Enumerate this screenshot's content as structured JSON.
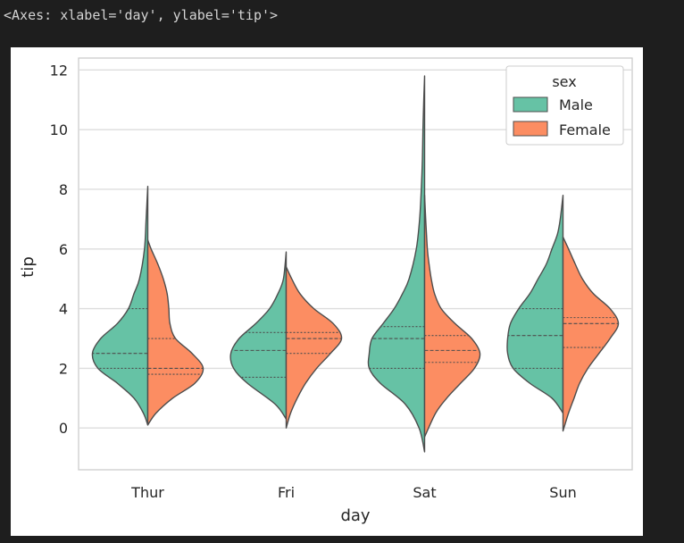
{
  "output_text": "<Axes: xlabel='day', ylabel='tip'>",
  "chart_data": {
    "type": "violin",
    "split": true,
    "inner": "quartile",
    "xlabel": "day",
    "ylabel": "tip",
    "ylim": [
      -1.4,
      12.4
    ],
    "yticks": [
      0,
      2,
      4,
      6,
      8,
      10,
      12
    ],
    "categories": [
      "Thur",
      "Fri",
      "Sat",
      "Sun"
    ],
    "grid": true,
    "legend": {
      "title": "sex",
      "placement": "top-right"
    },
    "series": [
      {
        "name": "Male",
        "color": "#66c2a5",
        "side": "left",
        "violins": [
          {
            "min": 0.1,
            "max": 8.1,
            "quartiles": [
              2.0,
              2.5,
              4.0
            ],
            "density": [
              [
                0.1,
                0.0
              ],
              [
                0.5,
                0.08
              ],
              [
                1.0,
                0.25
              ],
              [
                1.5,
                0.55
              ],
              [
                2.0,
                0.9
              ],
              [
                2.5,
                1.0
              ],
              [
                3.0,
                0.85
              ],
              [
                3.5,
                0.55
              ],
              [
                4.0,
                0.35
              ],
              [
                4.5,
                0.25
              ],
              [
                5.0,
                0.15
              ],
              [
                6.0,
                0.06
              ],
              [
                7.0,
                0.03
              ],
              [
                8.1,
                0.0
              ]
            ]
          },
          {
            "min": 0.3,
            "max": 5.9,
            "quartiles": [
              1.7,
              2.6,
              3.2
            ],
            "density": [
              [
                0.3,
                0.0
              ],
              [
                0.8,
                0.2
              ],
              [
                1.5,
                0.7
              ],
              [
                2.0,
                0.95
              ],
              [
                2.5,
                1.0
              ],
              [
                3.0,
                0.85
              ],
              [
                3.5,
                0.55
              ],
              [
                4.0,
                0.3
              ],
              [
                4.5,
                0.15
              ],
              [
                5.0,
                0.05
              ],
              [
                5.9,
                0.0
              ]
            ]
          },
          {
            "min": -0.8,
            "max": 11.8,
            "quartiles": [
              2.0,
              3.0,
              3.4
            ],
            "density": [
              [
                -0.8,
                0.0
              ],
              [
                0.0,
                0.1
              ],
              [
                0.8,
                0.35
              ],
              [
                1.5,
                0.8
              ],
              [
                2.0,
                1.0
              ],
              [
                2.5,
                1.0
              ],
              [
                3.0,
                0.95
              ],
              [
                3.5,
                0.75
              ],
              [
                4.0,
                0.55
              ],
              [
                4.5,
                0.4
              ],
              [
                5.0,
                0.28
              ],
              [
                6.0,
                0.15
              ],
              [
                7.0,
                0.09
              ],
              [
                8.0,
                0.06
              ],
              [
                9.0,
                0.04
              ],
              [
                10.0,
                0.03
              ],
              [
                11.0,
                0.015
              ],
              [
                11.8,
                0.0
              ]
            ]
          },
          {
            "min": 0.5,
            "max": 7.8,
            "quartiles": [
              2.0,
              3.1,
              4.0
            ],
            "density": [
              [
                0.5,
                0.0
              ],
              [
                1.0,
                0.2
              ],
              [
                1.5,
                0.6
              ],
              [
                2.0,
                0.9
              ],
              [
                2.5,
                1.0
              ],
              [
                3.0,
                1.0
              ],
              [
                3.5,
                0.95
              ],
              [
                4.0,
                0.8
              ],
              [
                4.5,
                0.6
              ],
              [
                5.0,
                0.45
              ],
              [
                5.5,
                0.3
              ],
              [
                6.0,
                0.2
              ],
              [
                6.5,
                0.1
              ],
              [
                7.0,
                0.05
              ],
              [
                7.8,
                0.0
              ]
            ]
          }
        ]
      },
      {
        "name": "Female",
        "color": "#fc8d62",
        "side": "right",
        "violins": [
          {
            "min": 0.1,
            "max": 6.3,
            "quartiles": [
              1.8,
              2.0,
              3.0
            ],
            "density": [
              [
                0.1,
                0.0
              ],
              [
                0.5,
                0.15
              ],
              [
                1.0,
                0.45
              ],
              [
                1.5,
                0.85
              ],
              [
                2.0,
                1.0
              ],
              [
                2.5,
                0.8
              ],
              [
                3.0,
                0.5
              ],
              [
                3.5,
                0.4
              ],
              [
                4.0,
                0.38
              ],
              [
                4.5,
                0.35
              ],
              [
                5.0,
                0.28
              ],
              [
                5.5,
                0.18
              ],
              [
                6.0,
                0.06
              ],
              [
                6.3,
                0.0
              ]
            ]
          },
          {
            "min": 0.0,
            "max": 5.4,
            "quartiles": [
              2.5,
              3.0,
              3.2
            ],
            "density": [
              [
                0.0,
                0.0
              ],
              [
                0.5,
                0.08
              ],
              [
                1.0,
                0.2
              ],
              [
                1.5,
                0.35
              ],
              [
                2.0,
                0.55
              ],
              [
                2.5,
                0.8
              ],
              [
                3.0,
                1.0
              ],
              [
                3.5,
                0.85
              ],
              [
                4.0,
                0.5
              ],
              [
                4.5,
                0.25
              ],
              [
                5.0,
                0.1
              ],
              [
                5.4,
                0.0
              ]
            ]
          },
          {
            "min": -0.3,
            "max": 7.8,
            "quartiles": [
              2.2,
              2.6,
              3.1
            ],
            "density": [
              [
                -0.3,
                0.0
              ],
              [
                0.5,
                0.2
              ],
              [
                1.0,
                0.4
              ],
              [
                1.5,
                0.65
              ],
              [
                2.0,
                0.9
              ],
              [
                2.5,
                1.0
              ],
              [
                3.0,
                0.85
              ],
              [
                3.5,
                0.55
              ],
              [
                4.0,
                0.3
              ],
              [
                4.5,
                0.18
              ],
              [
                5.0,
                0.12
              ],
              [
                5.5,
                0.08
              ],
              [
                6.0,
                0.05
              ],
              [
                7.0,
                0.02
              ],
              [
                7.8,
                0.0
              ]
            ]
          },
          {
            "min": -0.1,
            "max": 6.4,
            "quartiles": [
              2.7,
              3.5,
              3.7
            ],
            "density": [
              [
                -0.1,
                0.0
              ],
              [
                0.5,
                0.1
              ],
              [
                1.0,
                0.2
              ],
              [
                1.5,
                0.3
              ],
              [
                2.0,
                0.45
              ],
              [
                2.5,
                0.65
              ],
              [
                3.0,
                0.85
              ],
              [
                3.5,
                1.0
              ],
              [
                4.0,
                0.85
              ],
              [
                4.5,
                0.55
              ],
              [
                5.0,
                0.35
              ],
              [
                5.5,
                0.22
              ],
              [
                6.0,
                0.1
              ],
              [
                6.4,
                0.0
              ]
            ]
          }
        ]
      }
    ]
  }
}
